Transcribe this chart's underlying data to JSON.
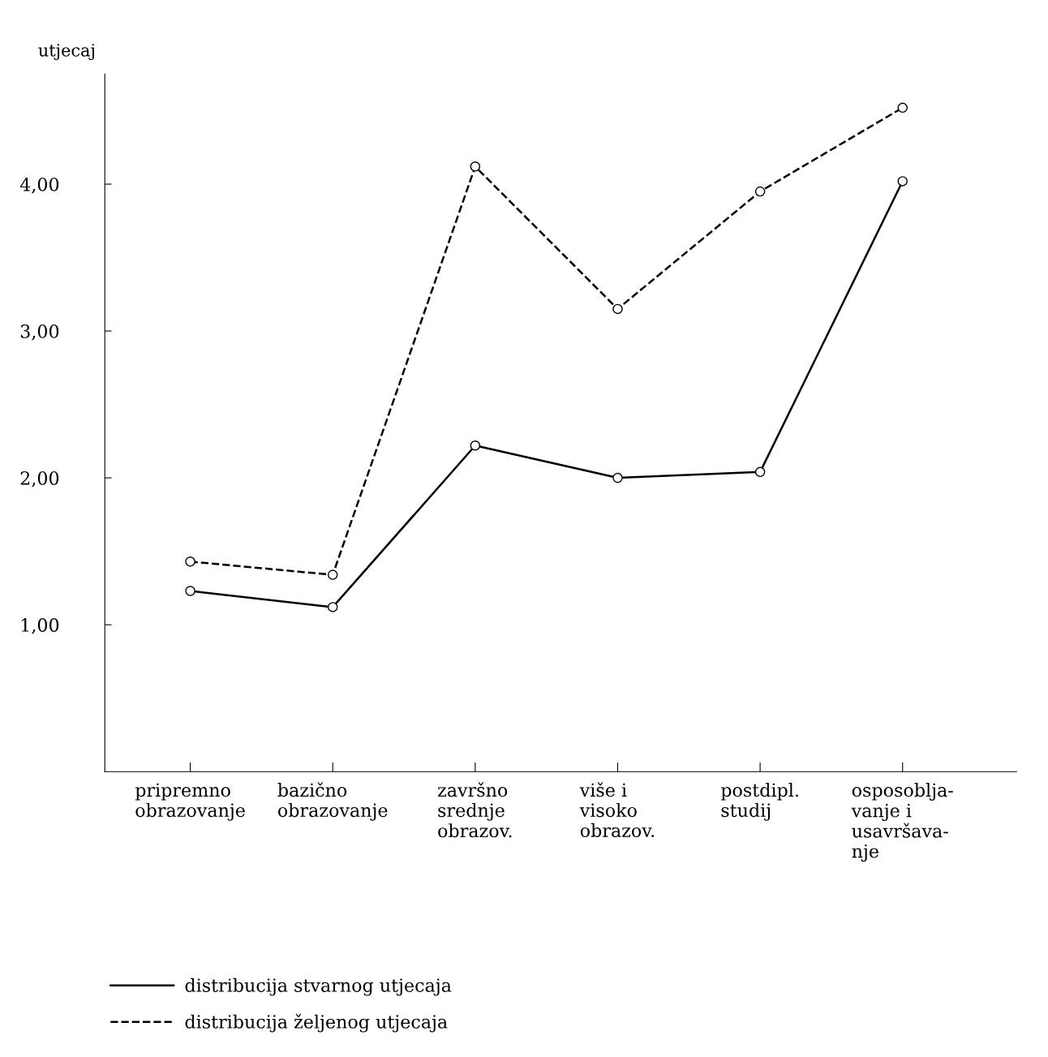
{
  "chart_data": {
    "type": "line",
    "ylabel": "utjecaj",
    "categories": [
      "pripremno\nobrazovanje",
      "bazično\nobrazovanje",
      "završno\nsrednje\nobrazov.",
      "više i\nvisoko\nobrazov.",
      "postdipl.\nstudij",
      "osposoblja-\nvanje i\nusavršava-\nnje"
    ],
    "series": [
      {
        "name": "distribucija stvarnog utjecaja",
        "color": "#000000",
        "line_style": "solid",
        "values": [
          1.23,
          1.12,
          2.22,
          2.0,
          2.04,
          4.02
        ]
      },
      {
        "name": "distribucija željenog utjecaja",
        "color": "#000000",
        "line_style": "dashed",
        "values": [
          1.43,
          1.34,
          4.12,
          3.15,
          3.95,
          4.52
        ]
      }
    ],
    "ylim": [
      0,
      4.75
    ],
    "yticks": [
      {
        "value": 1,
        "label": "1,00"
      },
      {
        "value": 2,
        "label": "2,00"
      },
      {
        "value": 3,
        "label": "3,00"
      },
      {
        "value": 4,
        "label": "4,00"
      }
    ],
    "marker": "circle",
    "grid": false,
    "legend": "bottom"
  }
}
